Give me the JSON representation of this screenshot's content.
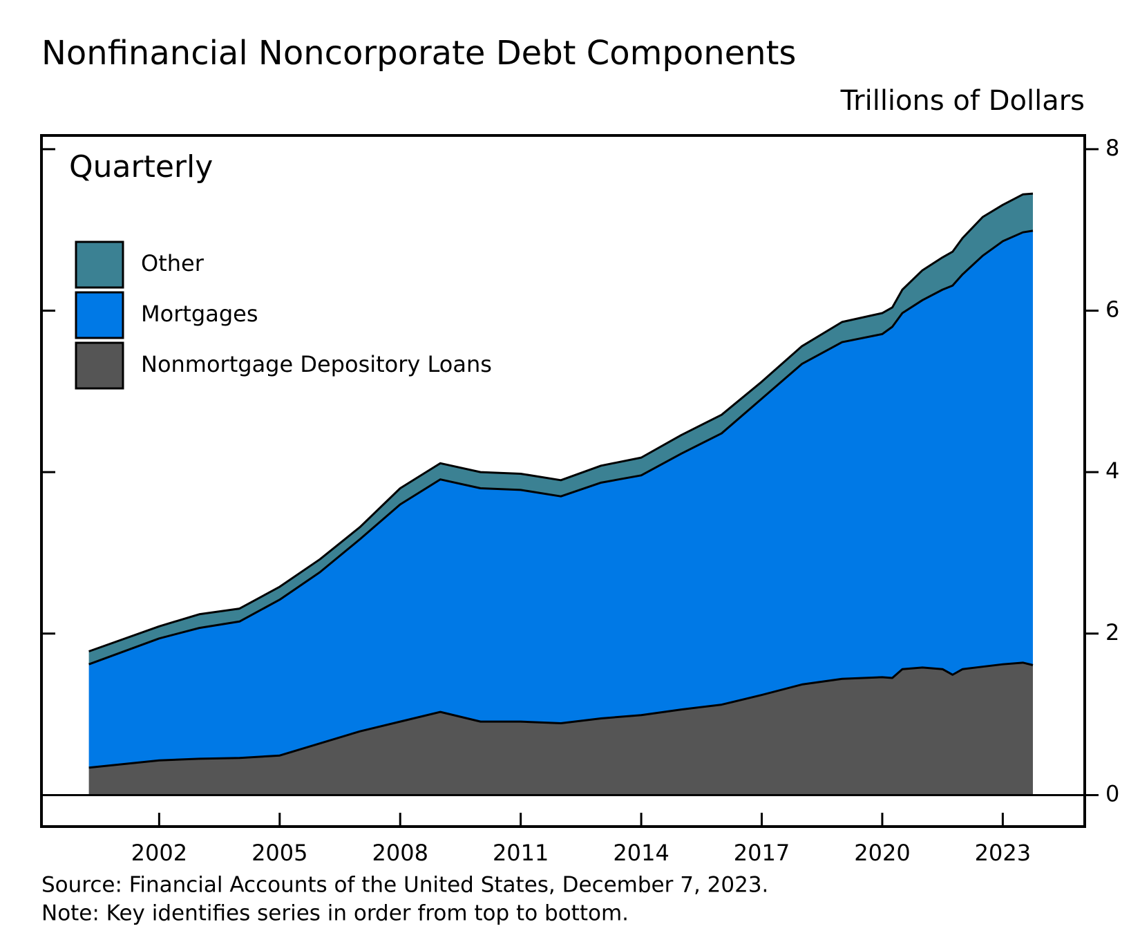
{
  "chart_data": {
    "type": "stacked-area",
    "title": "Nonfinancial Noncorporate Debt Components",
    "y_axis_label": "Trillions of Dollars",
    "annotation": "Quarterly",
    "source": "Source: Financial Accounts of the United States, December 7, 2023.",
    "note": "Note: Key identifies series in order from top to bottom.",
    "x": [
      2000.25,
      2002,
      2003,
      2004,
      2005,
      2006,
      2007,
      2008,
      2009,
      2010,
      2011,
      2012,
      2013,
      2014,
      2015,
      2016,
      2017,
      2018,
      2019,
      2020,
      2020.25,
      2020.5,
      2021,
      2021.5,
      2021.75,
      2022,
      2022.5,
      2023,
      2023.5,
      2023.75
    ],
    "series": [
      {
        "name": "Nonmortgage Depository Loans",
        "color": "#555555",
        "values": [
          0.34,
          0.43,
          0.45,
          0.46,
          0.49,
          0.64,
          0.79,
          0.91,
          1.03,
          0.91,
          0.91,
          0.89,
          0.95,
          0.99,
          1.06,
          1.12,
          1.24,
          1.37,
          1.44,
          1.46,
          1.45,
          1.56,
          1.58,
          1.56,
          1.49,
          1.56,
          1.59,
          1.62,
          1.64,
          1.61
        ]
      },
      {
        "name": "Mortgages",
        "color": "#0079e6",
        "values": [
          1.28,
          1.51,
          1.62,
          1.69,
          1.93,
          2.12,
          2.38,
          2.69,
          2.88,
          2.89,
          2.87,
          2.81,
          2.92,
          2.97,
          3.17,
          3.36,
          3.67,
          3.97,
          4.17,
          4.25,
          4.35,
          4.41,
          4.55,
          4.7,
          4.82,
          4.89,
          5.09,
          5.24,
          5.33,
          5.38
        ]
      },
      {
        "name": "Other",
        "color": "#3b8193",
        "values": [
          0.16,
          0.15,
          0.17,
          0.16,
          0.16,
          0.16,
          0.15,
          0.2,
          0.2,
          0.2,
          0.2,
          0.2,
          0.21,
          0.22,
          0.23,
          0.23,
          0.21,
          0.22,
          0.25,
          0.26,
          0.24,
          0.29,
          0.37,
          0.4,
          0.42,
          0.45,
          0.48,
          0.45,
          0.47,
          0.46
        ]
      }
    ],
    "xlim": [
      1999.07,
      2025.04
    ],
    "xticks": [
      2002,
      2005,
      2008,
      2011,
      2014,
      2017,
      2020,
      2023
    ],
    "ylim": [
      -0.39,
      8.17
    ],
    "yticks": [
      0,
      2,
      4,
      6,
      8
    ],
    "legend": "upper left"
  }
}
